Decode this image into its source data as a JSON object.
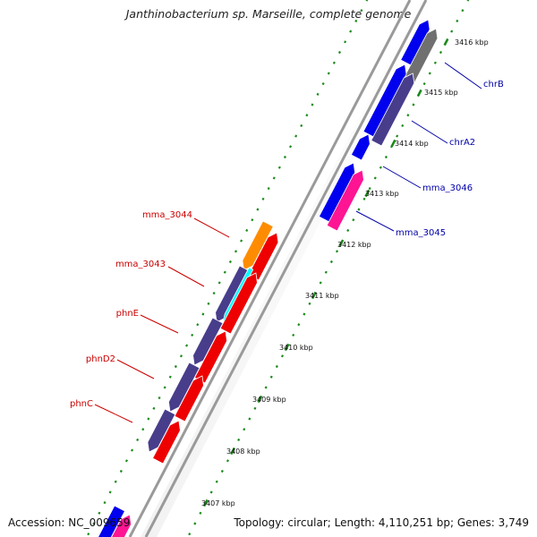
{
  "title": "Janthinobacterium sp. Marseille, complete genome",
  "footer": {
    "accession": "Accession: NC_009659",
    "summary": "Topology: circular; Length: 4,110,251 bp; Genes: 3,749"
  },
  "colors": {
    "backbone": "#9a9a9a",
    "ticks": "#1a8a1a",
    "forward_label": "#0000aa",
    "reverse_label": "#cc0000"
  },
  "kbp_ticks": [
    "3407 kbp",
    "3408 kbp",
    "3409 kbp",
    "3410 kbp",
    "3411 kbp",
    "3412 kbp",
    "3413 kbp",
    "3414 kbp",
    "3415 kbp",
    "3416 kbp"
  ],
  "genes_forward": [
    {
      "label": "chrB",
      "color": "#0000ee"
    },
    {
      "label": "",
      "color": "#707070"
    },
    {
      "label": "chrA2",
      "color": "#0000ee"
    },
    {
      "label": "",
      "color": "#483d8b"
    },
    {
      "label": "",
      "color": "#0000ee"
    },
    {
      "label": "mma_3046",
      "color": "#0000ee"
    },
    {
      "label": "mma_3045",
      "color": "#ff1493"
    }
  ],
  "genes_reverse": [
    {
      "label": "mma_3044",
      "color": "#ff8c00"
    },
    {
      "label": "",
      "color": "#ee0000"
    },
    {
      "label": "mma_3043",
      "color": "#483d8b"
    },
    {
      "label": "",
      "color": "#00ffff"
    },
    {
      "label": "",
      "color": "#ee0000"
    },
    {
      "label": "phnE",
      "color": "#483d8b"
    },
    {
      "label": "",
      "color": "#ee0000"
    },
    {
      "label": "phnD2",
      "color": "#483d8b"
    },
    {
      "label": "",
      "color": "#ee0000"
    },
    {
      "label": "phnC",
      "color": "#483d8b"
    },
    {
      "label": "",
      "color": "#ee0000"
    }
  ],
  "bottom_genes": [
    {
      "label": "",
      "color": "#0000ee"
    },
    {
      "label": "",
      "color": "#ff1493"
    }
  ]
}
